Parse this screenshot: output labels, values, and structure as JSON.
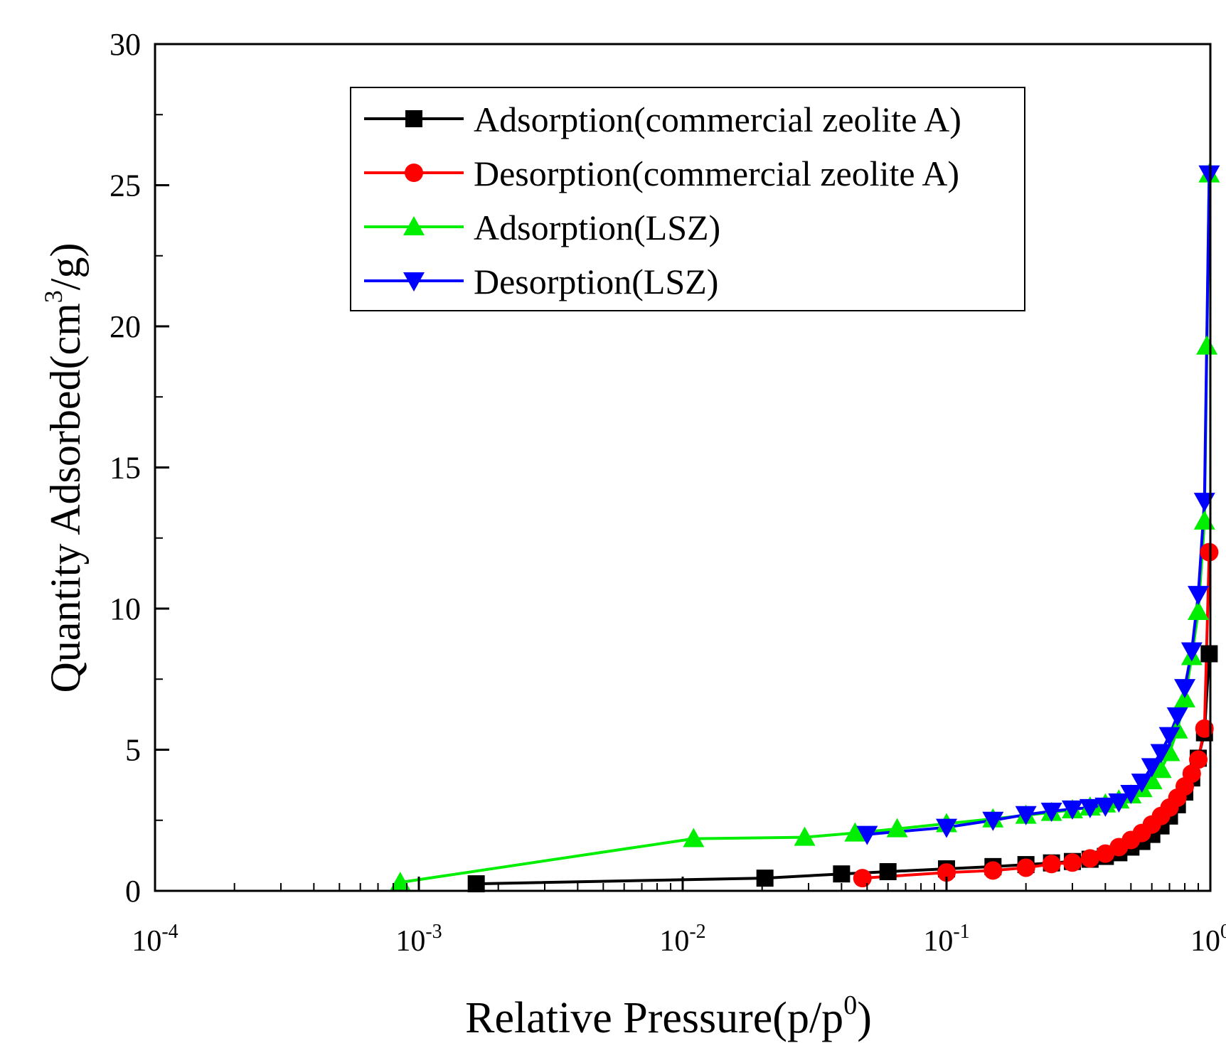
{
  "chart_data": {
    "type": "line",
    "title": "",
    "xlabel": "Relative Pressure(p/p",
    "xlabel_sup": "0",
    "xlabel_end": ")",
    "ylabel": "Quantity Adsorbed(cm",
    "ylabel_sup": "3",
    "ylabel_end": "/g)",
    "x_scale": "log",
    "xlim": [
      0.0001,
      1.0
    ],
    "ylim": [
      0,
      30
    ],
    "x_ticks": [
      {
        "base": "10",
        "exp": "-4",
        "value": 0.0001
      },
      {
        "base": "10",
        "exp": "-3",
        "value": 0.001
      },
      {
        "base": "10",
        "exp": "-2",
        "value": 0.01
      },
      {
        "base": "10",
        "exp": "-1",
        "value": 0.1
      },
      {
        "base": "10",
        "exp": "0",
        "value": 1.0
      }
    ],
    "y_ticks": [
      "0",
      "5",
      "10",
      "15",
      "20",
      "25",
      "30"
    ],
    "legend_position": "top-center",
    "series": [
      {
        "name": "Adsorption(commercial zeolite A)",
        "color": "#000000",
        "marker": "square",
        "x": [
          0.00165,
          0.0205,
          0.04,
          0.06,
          0.1,
          0.15,
          0.2,
          0.25,
          0.3,
          0.35,
          0.4,
          0.45,
          0.5,
          0.55,
          0.6,
          0.65,
          0.7,
          0.75,
          0.8,
          0.85,
          0.9,
          0.95,
          0.99
        ],
        "y": [
          0.25,
          0.45,
          0.6,
          0.68,
          0.78,
          0.86,
          0.93,
          0.99,
          1.04,
          1.12,
          1.22,
          1.35,
          1.55,
          1.75,
          2.0,
          2.3,
          2.65,
          3.05,
          3.5,
          4.0,
          4.7,
          5.6,
          8.4
        ]
      },
      {
        "name": "Desorption(commercial zeolite A)",
        "color": "#ff0000",
        "marker": "circle",
        "x": [
          0.99,
          0.95,
          0.9,
          0.85,
          0.8,
          0.75,
          0.7,
          0.65,
          0.6,
          0.55,
          0.5,
          0.45,
          0.4,
          0.35,
          0.3,
          0.25,
          0.2,
          0.15,
          0.1,
          0.048
        ],
        "y": [
          12.0,
          5.75,
          4.65,
          4.15,
          3.7,
          3.3,
          2.95,
          2.65,
          2.35,
          2.05,
          1.8,
          1.55,
          1.32,
          1.15,
          1.0,
          0.95,
          0.82,
          0.72,
          0.65,
          0.45
        ]
      },
      {
        "name": "Adsorption(LSZ)",
        "color": "#00ee00",
        "marker": "triangle-up",
        "x": [
          0.00085,
          0.011,
          0.029,
          0.045,
          0.065,
          0.1,
          0.15,
          0.2,
          0.25,
          0.3,
          0.35,
          0.4,
          0.45,
          0.5,
          0.55,
          0.6,
          0.65,
          0.7,
          0.75,
          0.8,
          0.85,
          0.9,
          0.95,
          0.97,
          0.99
        ],
        "y": [
          0.3,
          1.85,
          1.9,
          2.05,
          2.2,
          2.38,
          2.55,
          2.68,
          2.78,
          2.87,
          2.97,
          3.08,
          3.22,
          3.4,
          3.62,
          3.9,
          4.3,
          4.9,
          5.7,
          6.8,
          8.3,
          9.9,
          13.1,
          19.3,
          25.4
        ]
      },
      {
        "name": "Desorption(LSZ)",
        "color": "#0000ff",
        "marker": "triangle-down",
        "x": [
          0.99,
          0.95,
          0.9,
          0.85,
          0.8,
          0.75,
          0.7,
          0.65,
          0.6,
          0.55,
          0.5,
          0.45,
          0.4,
          0.35,
          0.3,
          0.25,
          0.2,
          0.15,
          0.1,
          0.05
        ],
        "y": [
          25.4,
          13.8,
          10.5,
          8.5,
          7.2,
          6.2,
          5.5,
          4.9,
          4.4,
          3.85,
          3.45,
          3.15,
          3.0,
          2.95,
          2.9,
          2.82,
          2.7,
          2.5,
          2.25,
          2.0
        ]
      }
    ]
  }
}
